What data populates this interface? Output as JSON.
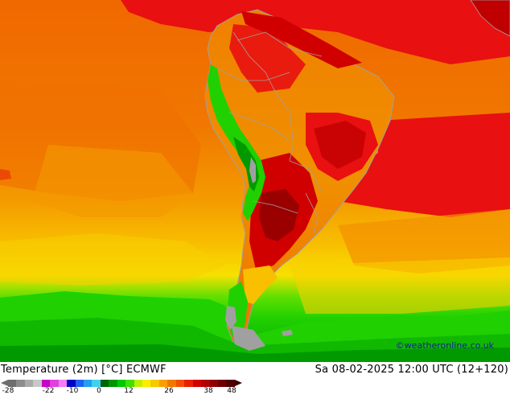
{
  "map": {
    "region": "South America",
    "colors": {
      "hot_red": "#e81010",
      "dark_red": "#c00000",
      "very_dark_red": "#9a0000",
      "orange_red": "#f05a00",
      "orange": "#f07a00",
      "light_orange": "#f4a000",
      "yellow_orange": "#f8c000",
      "yellow": "#f8e000",
      "green_yellow": "#c8e800",
      "green": "#20d000",
      "mid_green": "#10b800",
      "dark_green": "#009a00",
      "gray_ice": "#a0a0a0",
      "border": "#a0a0a0"
    }
  },
  "footer": {
    "title": "Temperature (2m) [°C] ECMWF",
    "datetime": "Sa 08-02-2025 12:00 UTC (12+120)",
    "credit": "©weatheronline.co.uk",
    "legend": {
      "colors": [
        "#6e6e6e",
        "#8c8c8c",
        "#aaaaaa",
        "#c8c8c8",
        "#c800c8",
        "#e040e0",
        "#f080f0",
        "#0000c8",
        "#2060f0",
        "#20a0f0",
        "#40d0f0",
        "#006400",
        "#009600",
        "#00c800",
        "#40e000",
        "#c0f000",
        "#f8f000",
        "#f8c800",
        "#f8a000",
        "#f07800",
        "#f05000",
        "#e82000",
        "#d00000",
        "#b00000",
        "#900000",
        "#700000",
        "#500000"
      ],
      "ticks": [
        "-28",
        "-22",
        "-10",
        "0",
        "12",
        "26",
        "38",
        "48"
      ]
    }
  }
}
